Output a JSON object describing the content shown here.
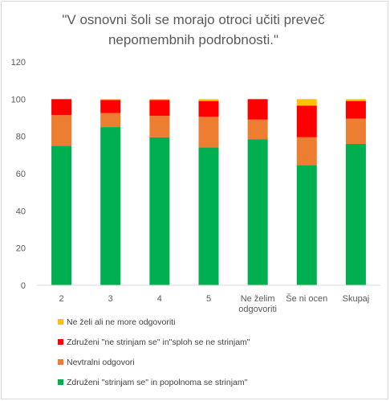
{
  "chart_data": {
    "type": "bar",
    "stacked": true,
    "title_lines": [
      "\"V osnovni šoli se morajo otroci učiti preveč",
      "nepomembnih  podrobnosti.\""
    ],
    "categories": [
      [
        "2"
      ],
      [
        "3"
      ],
      [
        "4"
      ],
      [
        "5"
      ],
      [
        "Ne želim",
        "odgovoriti"
      ],
      [
        "Še ni ocen"
      ],
      [
        "Skupaj"
      ]
    ],
    "ylim": [
      0,
      120
    ],
    "yticks": [
      0,
      20,
      40,
      60,
      80,
      100,
      120
    ],
    "grid": false,
    "legend_position": "bottom",
    "series": [
      {
        "name": "Združeni  \"strinjam se\" in popolnoma se strinjam\"",
        "color": "#00b050",
        "values": [
          75,
          85,
          79.5,
          74,
          78.5,
          64.5,
          76
        ]
      },
      {
        "name": "Nevtralni odgovori",
        "color": "#ed7d31",
        "values": [
          16.5,
          7.5,
          11.5,
          16.5,
          10.5,
          15,
          13.5
        ]
      },
      {
        "name": "Združeni  \"ne strinjam se\" in\"sploh se ne strinjam\"",
        "color": "#ff0000",
        "values": [
          8.5,
          7,
          8.5,
          8.5,
          11,
          17,
          9.5
        ]
      },
      {
        "name": "Ne želi ali ne more odgovoriti",
        "color": "#ffc000",
        "values": [
          0,
          0.5,
          0.5,
          1,
          0,
          3.5,
          1
        ]
      }
    ],
    "legend_order": [
      3,
      2,
      1,
      0
    ]
  }
}
